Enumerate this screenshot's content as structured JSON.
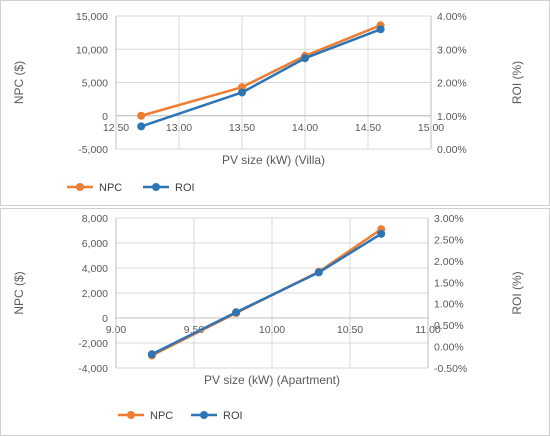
{
  "chart_data": [
    {
      "type": "line",
      "xlabel": "PV size (kW) (Villa)",
      "ylabel": "NPC ($)",
      "y2label": "ROI (%)",
      "xlim": [
        12.5,
        15.0
      ],
      "ylim": [
        -5000,
        15000
      ],
      "y2lim": [
        0.0,
        4.0
      ],
      "x_ticks": [
        "12.50",
        "13.00",
        "13.50",
        "14.00",
        "14.50",
        "15.00"
      ],
      "y_ticks": [
        "-5,000",
        "0",
        "5,000",
        "10,000",
        "15,000"
      ],
      "y2_ticks": [
        "0.00%",
        "1.00%",
        "2.00%",
        "3.00%",
        "4.00%"
      ],
      "grid": true,
      "legend": "bottom-left",
      "series": [
        {
          "name": "NPC",
          "axis": "left",
          "color": "#ED7D31",
          "x": [
            12.7,
            13.5,
            14.0,
            14.6
          ],
          "values": [
            0,
            4300,
            9000,
            13600
          ]
        },
        {
          "name": "ROI",
          "axis": "right",
          "color": "#2E75B6",
          "x": [
            12.7,
            13.5,
            14.0,
            14.6
          ],
          "values": [
            0.68,
            1.7,
            2.73,
            3.6
          ]
        }
      ]
    },
    {
      "type": "line",
      "xlabel": "PV size (kW) (Apartment)",
      "ylabel": "NPC ($)",
      "y2label": "ROI (%)",
      "xlim": [
        9.0,
        11.0
      ],
      "ylim": [
        -4000,
        8000
      ],
      "y2lim": [
        -0.5,
        3.0
      ],
      "x_ticks": [
        "9.00",
        "9.50",
        "10.00",
        "10.50",
        "11.00"
      ],
      "y_ticks": [
        "-4,000",
        "-2,000",
        "0",
        "2,000",
        "4,000",
        "6,000",
        "8,000"
      ],
      "y2_ticks": [
        "-0.50%",
        "0.00%",
        "0.50%",
        "1.00%",
        "1.50%",
        "2.00%",
        "2.50%",
        "3.00%"
      ],
      "grid": true,
      "legend": "bottom-left",
      "series": [
        {
          "name": "NPC",
          "axis": "left",
          "color": "#ED7D31",
          "x": [
            9.23,
            9.77,
            10.3,
            10.7
          ],
          "values": [
            -3000,
            400,
            3700,
            7100
          ]
        },
        {
          "name": "ROI",
          "axis": "right",
          "color": "#2E75B6",
          "x": [
            9.23,
            9.77,
            10.3,
            10.7
          ],
          "values": [
            -0.18,
            0.8,
            1.73,
            2.63
          ]
        }
      ]
    }
  ]
}
